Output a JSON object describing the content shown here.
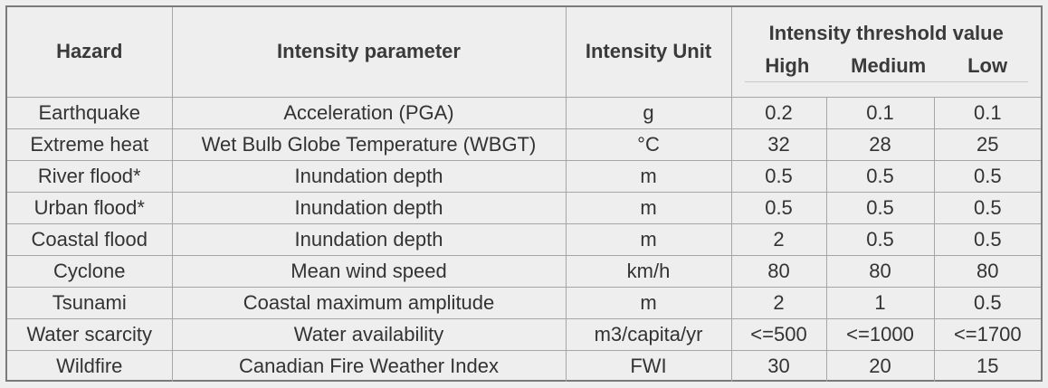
{
  "table": {
    "headers": {
      "hazard": "Hazard",
      "parameter": "Intensity parameter",
      "unit": "Intensity Unit",
      "threshold": "Intensity threshold value",
      "high": "High",
      "medium": "Medium",
      "low": "Low"
    },
    "rows": [
      {
        "hazard": "Earthquake",
        "parameter": "Acceleration (PGA)",
        "unit": "g",
        "high": "0.2",
        "medium": "0.1",
        "low": "0.1"
      },
      {
        "hazard": "Extreme heat",
        "parameter": "Wet Bulb Globe Temperature (WBGT)",
        "unit": "°C",
        "high": "32",
        "medium": "28",
        "low": "25"
      },
      {
        "hazard": "River flood*",
        "parameter": "Inundation depth",
        "unit": "m",
        "high": "0.5",
        "medium": "0.5",
        "low": "0.5"
      },
      {
        "hazard": "Urban flood*",
        "parameter": "Inundation depth",
        "unit": "m",
        "high": "0.5",
        "medium": "0.5",
        "low": "0.5"
      },
      {
        "hazard": "Coastal flood",
        "parameter": "Inundation depth",
        "unit": "m",
        "high": "2",
        "medium": "0.5",
        "low": "0.5"
      },
      {
        "hazard": "Cyclone",
        "parameter": "Mean wind speed",
        "unit": "km/h",
        "high": "80",
        "medium": "80",
        "low": "80"
      },
      {
        "hazard": "Tsunami",
        "parameter": "Coastal maximum amplitude",
        "unit": "m",
        "high": "2",
        "medium": "1",
        "low": "0.5"
      },
      {
        "hazard": "Water scarcity",
        "parameter": "Water availability",
        "unit": "m3/capita/yr",
        "high": "<=500",
        "medium": "<=1000",
        "low": "<=1700"
      },
      {
        "hazard": "Wildfire",
        "parameter": "Canadian Fire Weather Index",
        "unit": "FWI",
        "high": "30",
        "medium": "20",
        "low": "15"
      }
    ]
  }
}
